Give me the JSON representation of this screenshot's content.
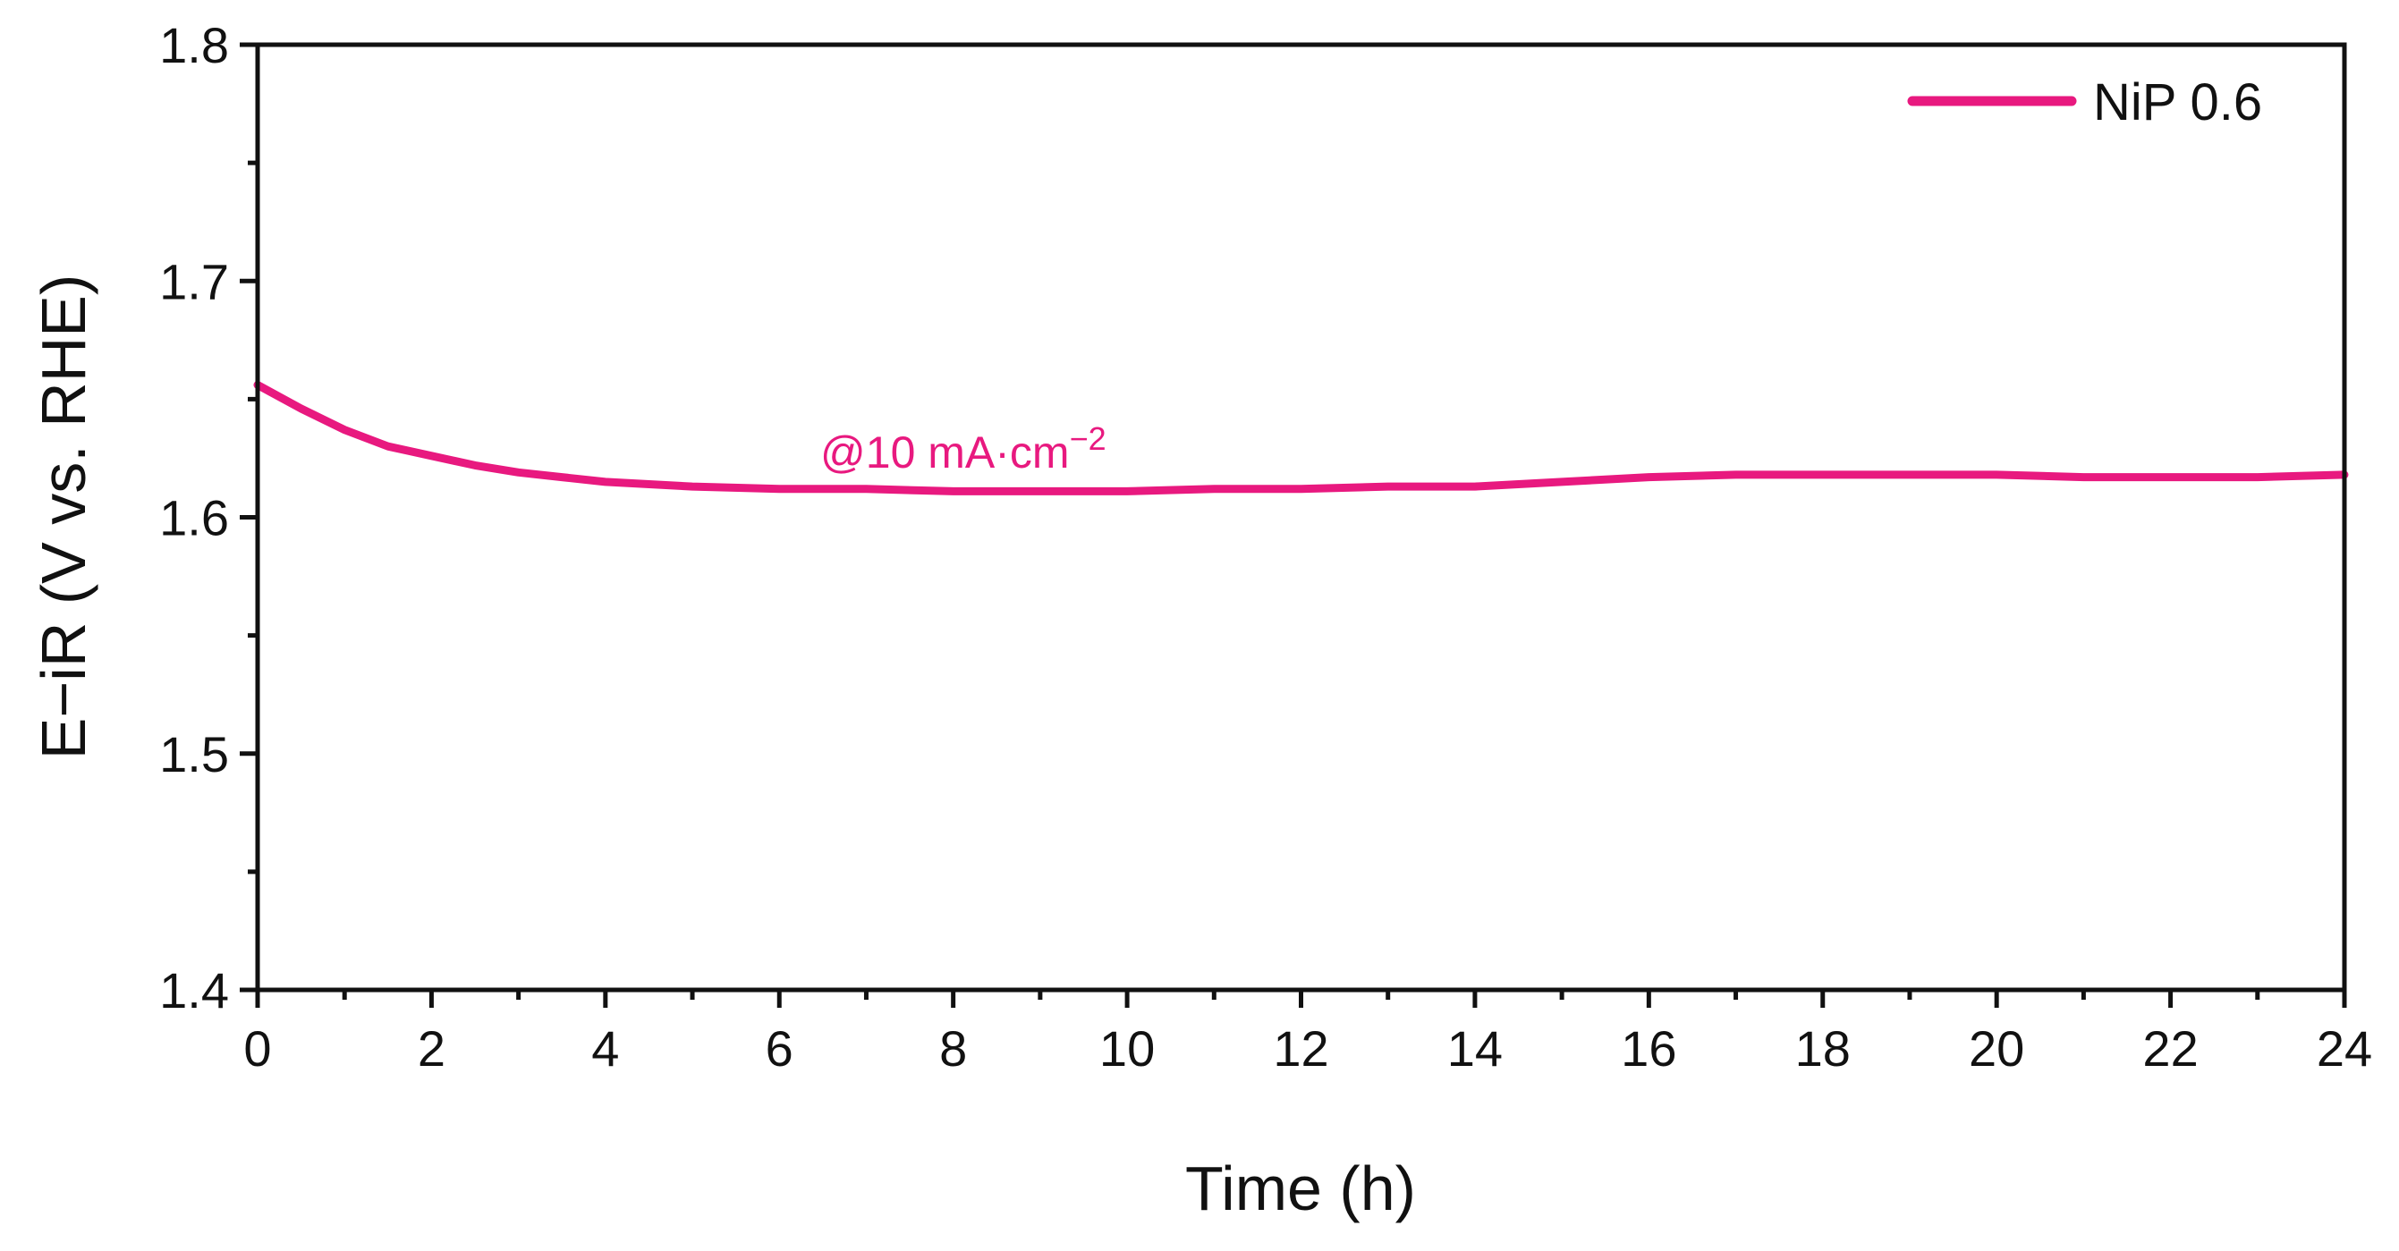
{
  "chart_data": {
    "type": "line",
    "title": "",
    "xlabel": "Time (h)",
    "ylabel": "E−iR (V vs. RHE)",
    "xlim": [
      0,
      24
    ],
    "ylim": [
      1.4,
      1.8
    ],
    "x_major_ticks": [
      0,
      2,
      4,
      6,
      8,
      10,
      12,
      14,
      16,
      18,
      20,
      22,
      24
    ],
    "x_tick_labels": [
      "0",
      "2",
      "4",
      "6",
      "8",
      "10",
      "12",
      "14",
      "16",
      "18",
      "20",
      "22",
      "24"
    ],
    "x_minor_ticks": [
      1,
      3,
      5,
      7,
      9,
      11,
      13,
      15,
      17,
      19,
      21,
      23
    ],
    "y_major_ticks": [
      1.4,
      1.5,
      1.6,
      1.7,
      1.8
    ],
    "y_tick_labels": [
      "1.4",
      "1.5",
      "1.6",
      "1.7",
      "1.8"
    ],
    "y_minor_ticks": [
      1.45,
      1.55,
      1.65,
      1.75
    ],
    "grid": false,
    "legend_position": "top-right",
    "annotation": {
      "text": "@10 mA·cm",
      "superscript": "−2",
      "color": "#e8197f"
    },
    "series": [
      {
        "name": "NiP 0.6",
        "color": "#e8197f",
        "x": [
          0,
          0.5,
          1,
          1.5,
          2,
          2.5,
          3,
          3.5,
          4,
          5,
          6,
          7,
          8,
          9,
          10,
          11,
          12,
          13,
          14,
          15,
          16,
          17,
          18,
          19,
          20,
          21,
          22,
          23,
          24
        ],
        "y": [
          1.656,
          1.646,
          1.637,
          1.63,
          1.626,
          1.622,
          1.619,
          1.617,
          1.615,
          1.613,
          1.612,
          1.612,
          1.611,
          1.611,
          1.611,
          1.612,
          1.612,
          1.613,
          1.613,
          1.615,
          1.617,
          1.618,
          1.618,
          1.618,
          1.618,
          1.617,
          1.617,
          1.617,
          1.618
        ]
      }
    ]
  }
}
